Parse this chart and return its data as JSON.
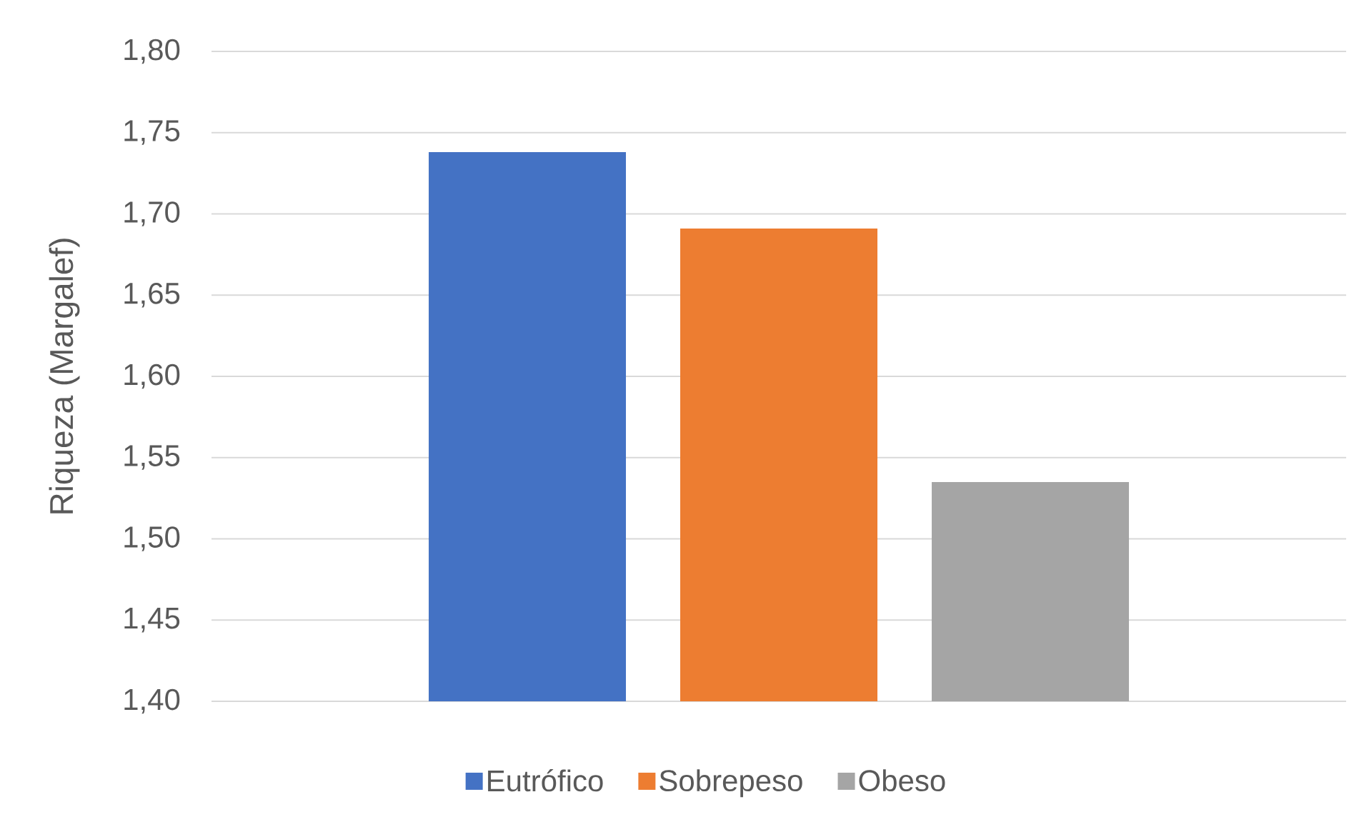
{
  "chart_data": {
    "type": "bar",
    "ylabel": "Riqueza (Margalef)",
    "categories": [
      null
    ],
    "series": [
      {
        "name": "Eutrófico",
        "color": "#4472c4",
        "values": [
          1.738
        ]
      },
      {
        "name": "Sobrepeso",
        "color": "#ed7d31",
        "values": [
          1.691
        ]
      },
      {
        "name": "Obeso",
        "color": "#a5a5a5",
        "values": [
          1.535
        ]
      }
    ],
    "ylim": [
      1.4,
      1.8
    ],
    "yticks": [
      {
        "value": 1.4,
        "label": "1,40"
      },
      {
        "value": 1.45,
        "label": "1,45"
      },
      {
        "value": 1.5,
        "label": "1,50"
      },
      {
        "value": 1.55,
        "label": "1,55"
      },
      {
        "value": 1.6,
        "label": "1,60"
      },
      {
        "value": 1.65,
        "label": "1,65"
      },
      {
        "value": 1.7,
        "label": "1,70"
      },
      {
        "value": 1.75,
        "label": "1,75"
      },
      {
        "value": 1.8,
        "label": "1,80"
      }
    ],
    "grid": "y",
    "legend": "bottom"
  }
}
